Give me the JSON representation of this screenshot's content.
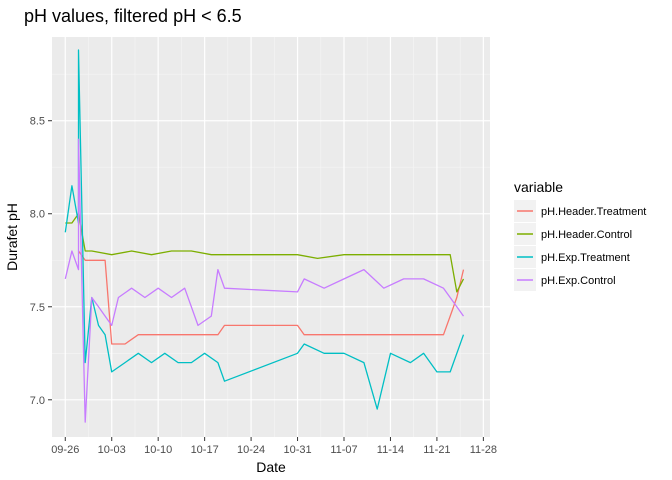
{
  "chart_data": {
    "type": "line",
    "title": "pH values, filtered pH < 6.5",
    "xlabel": "Date",
    "ylabel": "Durafet pH",
    "x_ticks": [
      "09-26",
      "10-03",
      "10-10",
      "10-17",
      "10-24",
      "10-31",
      "11-07",
      "11-14",
      "11-21",
      "11-28"
    ],
    "y_ticks": [
      "7.0",
      "7.5",
      "8.0",
      "8.5"
    ],
    "ylim": [
      6.8,
      8.95
    ],
    "xlim": [
      "09-24",
      "11-29"
    ],
    "grid": true,
    "legend": {
      "title": "variable",
      "placement": "right"
    },
    "series": [
      {
        "name": "pH.Header.Treatment",
        "color": "#F8766D",
        "points": [
          [
            "09-28",
            7.8
          ],
          [
            "09-29",
            7.75
          ],
          [
            "10-01",
            7.75
          ],
          [
            "10-02",
            7.75
          ],
          [
            "10-03",
            7.3
          ],
          [
            "10-05",
            7.3
          ],
          [
            "10-07",
            7.35
          ],
          [
            "10-10",
            7.35
          ],
          [
            "10-14",
            7.35
          ],
          [
            "10-17",
            7.35
          ],
          [
            "10-19",
            7.35
          ],
          [
            "10-20",
            7.4
          ],
          [
            "10-31",
            7.4
          ],
          [
            "11-01",
            7.35
          ],
          [
            "11-05",
            7.35
          ],
          [
            "11-10",
            7.35
          ],
          [
            "11-15",
            7.35
          ],
          [
            "11-20",
            7.35
          ],
          [
            "11-22",
            7.35
          ],
          [
            "11-23",
            7.45
          ],
          [
            "11-24",
            7.55
          ],
          [
            "11-25",
            7.7
          ]
        ]
      },
      {
        "name": "pH.Header.Control",
        "color": "#7CAE00",
        "points": [
          [
            "09-26",
            7.95
          ],
          [
            "09-27",
            7.95
          ],
          [
            "09-28",
            8.0
          ],
          [
            "09-29",
            7.8
          ],
          [
            "09-30",
            7.8
          ],
          [
            "10-03",
            7.78
          ],
          [
            "10-06",
            7.8
          ],
          [
            "10-09",
            7.78
          ],
          [
            "10-12",
            7.8
          ],
          [
            "10-15",
            7.8
          ],
          [
            "10-18",
            7.78
          ],
          [
            "10-20",
            7.78
          ],
          [
            "10-31",
            7.78
          ],
          [
            "11-03",
            7.76
          ],
          [
            "11-07",
            7.78
          ],
          [
            "11-12",
            7.78
          ],
          [
            "11-18",
            7.78
          ],
          [
            "11-23",
            7.78
          ],
          [
            "11-24",
            7.58
          ],
          [
            "11-25",
            7.65
          ]
        ]
      },
      {
        "name": "pH.Exp.Treatment",
        "color": "#00BFC4",
        "points": [
          [
            "09-26",
            7.9
          ],
          [
            "09-27",
            8.15
          ],
          [
            "09-28",
            7.95
          ],
          [
            "09-28",
            8.88
          ],
          [
            "09-29",
            7.2
          ],
          [
            "09-30",
            7.55
          ],
          [
            "10-01",
            7.4
          ],
          [
            "10-02",
            7.35
          ],
          [
            "10-03",
            7.15
          ],
          [
            "10-05",
            7.2
          ],
          [
            "10-07",
            7.25
          ],
          [
            "10-09",
            7.2
          ],
          [
            "10-11",
            7.25
          ],
          [
            "10-13",
            7.2
          ],
          [
            "10-15",
            7.2
          ],
          [
            "10-17",
            7.25
          ],
          [
            "10-19",
            7.2
          ],
          [
            "10-20",
            7.1
          ],
          [
            "10-31",
            7.25
          ],
          [
            "11-01",
            7.3
          ],
          [
            "11-04",
            7.25
          ],
          [
            "11-07",
            7.25
          ],
          [
            "11-10",
            7.2
          ],
          [
            "11-12",
            6.95
          ],
          [
            "11-14",
            7.25
          ],
          [
            "11-17",
            7.2
          ],
          [
            "11-19",
            7.25
          ],
          [
            "11-21",
            7.15
          ],
          [
            "11-23",
            7.15
          ],
          [
            "11-25",
            7.35
          ]
        ]
      },
      {
        "name": "pH.Exp.Control",
        "color": "#C77CFF",
        "points": [
          [
            "09-26",
            7.65
          ],
          [
            "09-27",
            7.8
          ],
          [
            "09-28",
            7.7
          ],
          [
            "09-28",
            8.4
          ],
          [
            "09-29",
            6.88
          ],
          [
            "09-30",
            7.55
          ],
          [
            "10-01",
            7.5
          ],
          [
            "10-02",
            7.45
          ],
          [
            "10-03",
            7.4
          ],
          [
            "10-04",
            7.55
          ],
          [
            "10-06",
            7.6
          ],
          [
            "10-08",
            7.55
          ],
          [
            "10-10",
            7.6
          ],
          [
            "10-12",
            7.55
          ],
          [
            "10-14",
            7.6
          ],
          [
            "10-16",
            7.4
          ],
          [
            "10-18",
            7.45
          ],
          [
            "10-19",
            7.7
          ],
          [
            "10-20",
            7.6
          ],
          [
            "10-31",
            7.58
          ],
          [
            "11-01",
            7.65
          ],
          [
            "11-04",
            7.6
          ],
          [
            "11-07",
            7.65
          ],
          [
            "11-10",
            7.7
          ],
          [
            "11-13",
            7.6
          ],
          [
            "11-16",
            7.65
          ],
          [
            "11-19",
            7.65
          ],
          [
            "11-22",
            7.6
          ],
          [
            "11-24",
            7.5
          ],
          [
            "11-25",
            7.45
          ]
        ]
      }
    ]
  }
}
